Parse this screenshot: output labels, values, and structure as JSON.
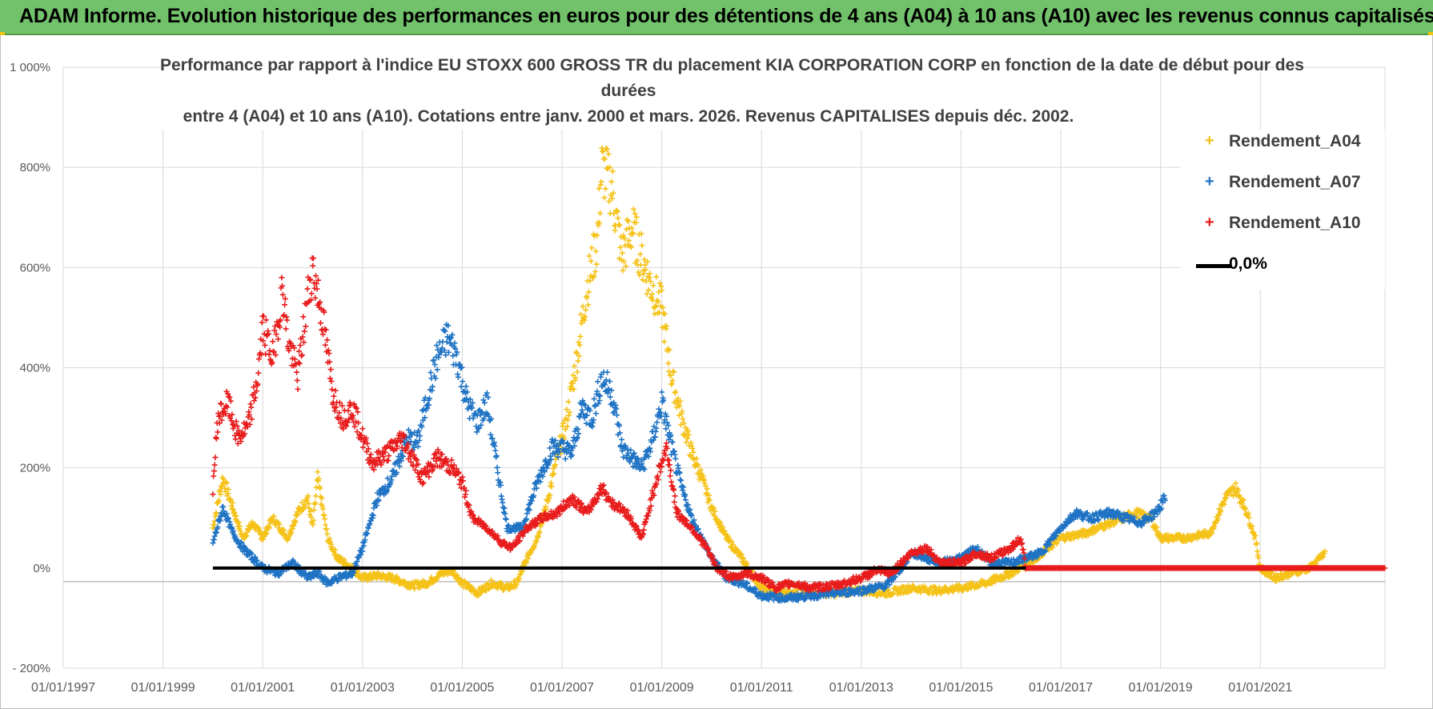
{
  "banner": {
    "title": "ADAM Informe. Evolution historique des performances en euros pour des détentions de 4 ans (A04) à 10 ans (A10) avec les revenus connus capitalisés"
  },
  "chart_data": {
    "type": "scatter",
    "title_lines": [
      "Performance par rapport à l'indice EU STOXX 600 GROSS TR  du placement KIA CORPORATION CORP en fonction de la date de début pour des",
      "durées",
      "entre 4 (A04) et 10 ans (A10).  Cotations entre janv. 2000 et mars. 2026.  Revenus CAPITALISES  depuis déc. 2002."
    ],
    "xlabel": "",
    "ylabel": "",
    "x_range": [
      1997.0,
      2023.5
    ],
    "ylim": [
      -200,
      1000
    ],
    "y_ticks": [
      1000,
      800,
      600,
      400,
      200,
      0,
      -200
    ],
    "y_tick_labels": [
      "1 000%",
      "800%",
      "600%",
      "400%",
      "200%",
      "0%",
      "- 200%"
    ],
    "x_ticks": [
      1997,
      1999,
      2001,
      2003,
      2005,
      2007,
      2009,
      2011,
      2013,
      2015,
      2017,
      2019,
      2021
    ],
    "x_tick_labels": [
      "01/01/1997",
      "01/01/1999",
      "01/01/2001",
      "01/01/2003",
      "01/01/2005",
      "01/01/2007",
      "01/01/2009",
      "01/01/2011",
      "01/01/2013",
      "01/01/2015",
      "01/01/2017",
      "01/01/2019",
      "01/01/2021"
    ],
    "gridlines": true,
    "legend_position": "top-right",
    "series": [
      {
        "name": "Rendement_A04",
        "color": "#f5c218",
        "marker": "plus",
        "points": [
          [
            2000.0,
            80
          ],
          [
            2000.2,
            180
          ],
          [
            2000.4,
            120
          ],
          [
            2000.6,
            60
          ],
          [
            2000.8,
            90
          ],
          [
            2001.0,
            60
          ],
          [
            2001.2,
            100
          ],
          [
            2001.5,
            60
          ],
          [
            2001.7,
            110
          ],
          [
            2001.9,
            140
          ],
          [
            2002.0,
            80
          ],
          [
            2002.1,
            180
          ],
          [
            2002.3,
            60
          ],
          [
            2002.5,
            20
          ],
          [
            2002.8,
            0
          ],
          [
            2003.0,
            -20
          ],
          [
            2003.3,
            -15
          ],
          [
            2003.6,
            -20
          ],
          [
            2004.0,
            -35
          ],
          [
            2004.3,
            -30
          ],
          [
            2004.6,
            -10
          ],
          [
            2004.8,
            -5
          ],
          [
            2005.0,
            -30
          ],
          [
            2005.3,
            -50
          ],
          [
            2005.6,
            -30
          ],
          [
            2005.9,
            -40
          ],
          [
            2006.1,
            -30
          ],
          [
            2006.3,
            20
          ],
          [
            2006.5,
            60
          ],
          [
            2006.7,
            130
          ],
          [
            2006.9,
            220
          ],
          [
            2007.1,
            300
          ],
          [
            2007.3,
            420
          ],
          [
            2007.5,
            560
          ],
          [
            2007.7,
            650
          ],
          [
            2007.8,
            800
          ],
          [
            2008.0,
            760
          ],
          [
            2008.2,
            620
          ],
          [
            2008.4,
            680
          ],
          [
            2008.6,
            620
          ],
          [
            2008.8,
            560
          ],
          [
            2009.0,
            520
          ],
          [
            2009.2,
            380
          ],
          [
            2009.4,
            300
          ],
          [
            2009.6,
            230
          ],
          [
            2009.8,
            180
          ],
          [
            2010.0,
            120
          ],
          [
            2010.3,
            60
          ],
          [
            2010.6,
            20
          ],
          [
            2011.0,
            -40
          ],
          [
            2011.5,
            -50
          ],
          [
            2012.0,
            -50
          ],
          [
            2012.5,
            -50
          ],
          [
            2013.0,
            -45
          ],
          [
            2013.5,
            -50
          ],
          [
            2014.0,
            -40
          ],
          [
            2014.5,
            -45
          ],
          [
            2015.0,
            -40
          ],
          [
            2015.5,
            -30
          ],
          [
            2016.0,
            -10
          ],
          [
            2016.5,
            20
          ],
          [
            2017.0,
            60
          ],
          [
            2017.5,
            70
          ],
          [
            2018.0,
            90
          ],
          [
            2018.5,
            110
          ],
          [
            2018.8,
            100
          ],
          [
            2019.0,
            60
          ],
          [
            2019.5,
            60
          ],
          [
            2020.0,
            70
          ],
          [
            2020.3,
            140
          ],
          [
            2020.5,
            160
          ],
          [
            2020.7,
            120
          ],
          [
            2020.9,
            60
          ],
          [
            2021.0,
            0
          ],
          [
            2021.3,
            -20
          ],
          [
            2021.6,
            -10
          ],
          [
            2022.0,
            0
          ],
          [
            2022.3,
            30
          ]
        ]
      },
      {
        "name": "Rendement_A07",
        "color": "#1f73c4",
        "marker": "plus",
        "points": [
          [
            2000.0,
            50
          ],
          [
            2000.2,
            120
          ],
          [
            2000.4,
            70
          ],
          [
            2000.6,
            40
          ],
          [
            2000.8,
            20
          ],
          [
            2001.0,
            0
          ],
          [
            2001.3,
            -10
          ],
          [
            2001.6,
            10
          ],
          [
            2001.9,
            -20
          ],
          [
            2002.1,
            -10
          ],
          [
            2002.3,
            -30
          ],
          [
            2002.5,
            -20
          ],
          [
            2002.8,
            -10
          ],
          [
            2003.0,
            40
          ],
          [
            2003.3,
            140
          ],
          [
            2003.6,
            180
          ],
          [
            2003.9,
            260
          ],
          [
            2004.1,
            250
          ],
          [
            2004.3,
            340
          ],
          [
            2004.5,
            420
          ],
          [
            2004.7,
            460
          ],
          [
            2004.9,
            420
          ],
          [
            2005.1,
            330
          ],
          [
            2005.3,
            290
          ],
          [
            2005.5,
            330
          ],
          [
            2005.7,
            200
          ],
          [
            2005.9,
            80
          ],
          [
            2006.2,
            80
          ],
          [
            2006.5,
            170
          ],
          [
            2006.8,
            240
          ],
          [
            2007.0,
            240
          ],
          [
            2007.2,
            230
          ],
          [
            2007.4,
            320
          ],
          [
            2007.6,
            300
          ],
          [
            2007.8,
            380
          ],
          [
            2008.0,
            350
          ],
          [
            2008.2,
            240
          ],
          [
            2008.4,
            220
          ],
          [
            2008.6,
            200
          ],
          [
            2008.8,
            250
          ],
          [
            2009.0,
            330
          ],
          [
            2009.2,
            240
          ],
          [
            2009.4,
            160
          ],
          [
            2009.6,
            100
          ],
          [
            2009.8,
            60
          ],
          [
            2010.0,
            20
          ],
          [
            2010.3,
            -20
          ],
          [
            2010.6,
            -30
          ],
          [
            2011.0,
            -55
          ],
          [
            2011.5,
            -60
          ],
          [
            2012.0,
            -55
          ],
          [
            2012.5,
            -50
          ],
          [
            2013.0,
            -45
          ],
          [
            2013.5,
            -35
          ],
          [
            2013.8,
            0
          ],
          [
            2014.0,
            30
          ],
          [
            2014.3,
            20
          ],
          [
            2014.6,
            10
          ],
          [
            2015.0,
            20
          ],
          [
            2015.3,
            40
          ],
          [
            2015.6,
            10
          ],
          [
            2016.0,
            10
          ],
          [
            2016.3,
            20
          ],
          [
            2016.6,
            30
          ],
          [
            2017.0,
            80
          ],
          [
            2017.3,
            110
          ],
          [
            2017.6,
            100
          ],
          [
            2018.0,
            110
          ],
          [
            2018.3,
            100
          ],
          [
            2018.6,
            90
          ],
          [
            2018.9,
            110
          ],
          [
            2019.1,
            140
          ]
        ]
      },
      {
        "name": "Rendement_A10",
        "color": "#e81c1c",
        "marker": "plus",
        "points": [
          [
            2000.0,
            160
          ],
          [
            2000.1,
            300
          ],
          [
            2000.3,
            330
          ],
          [
            2000.5,
            260
          ],
          [
            2000.7,
            280
          ],
          [
            2000.9,
            380
          ],
          [
            2001.0,
            480
          ],
          [
            2001.2,
            420
          ],
          [
            2001.4,
            560
          ],
          [
            2001.5,
            460
          ],
          [
            2001.7,
            380
          ],
          [
            2001.9,
            540
          ],
          [
            2002.0,
            600
          ],
          [
            2002.2,
            500
          ],
          [
            2002.4,
            350
          ],
          [
            2002.6,
            300
          ],
          [
            2002.8,
            320
          ],
          [
            2003.0,
            260
          ],
          [
            2003.2,
            210
          ],
          [
            2003.5,
            230
          ],
          [
            2003.8,
            260
          ],
          [
            2004.0,
            220
          ],
          [
            2004.2,
            180
          ],
          [
            2004.5,
            220
          ],
          [
            2004.8,
            200
          ],
          [
            2005.0,
            170
          ],
          [
            2005.2,
            100
          ],
          [
            2005.5,
            80
          ],
          [
            2005.8,
            50
          ],
          [
            2006.0,
            40
          ],
          [
            2006.3,
            80
          ],
          [
            2006.6,
            100
          ],
          [
            2006.9,
            110
          ],
          [
            2007.2,
            140
          ],
          [
            2007.5,
            110
          ],
          [
            2007.8,
            160
          ],
          [
            2008.0,
            130
          ],
          [
            2008.3,
            110
          ],
          [
            2008.6,
            60
          ],
          [
            2008.9,
            180
          ],
          [
            2009.1,
            240
          ],
          [
            2009.3,
            110
          ],
          [
            2009.6,
            80
          ],
          [
            2009.9,
            40
          ],
          [
            2010.1,
            0
          ],
          [
            2010.4,
            -20
          ],
          [
            2010.7,
            -10
          ],
          [
            2011.0,
            -20
          ],
          [
            2011.3,
            -40
          ],
          [
            2011.6,
            -30
          ],
          [
            2012.0,
            -40
          ],
          [
            2012.5,
            -35
          ],
          [
            2013.0,
            -20
          ],
          [
            2013.3,
            -5
          ],
          [
            2013.6,
            -10
          ],
          [
            2014.0,
            30
          ],
          [
            2014.3,
            40
          ],
          [
            2014.6,
            10
          ],
          [
            2015.0,
            10
          ],
          [
            2015.3,
            30
          ],
          [
            2015.6,
            20
          ],
          [
            2016.0,
            40
          ],
          [
            2016.2,
            60
          ],
          [
            2016.3,
            0
          ],
          [
            2017.0,
            0
          ],
          [
            2018.0,
            0
          ],
          [
            2019.0,
            0
          ],
          [
            2020.0,
            0
          ],
          [
            2021.0,
            0
          ],
          [
            2022.0,
            0
          ],
          [
            2023.0,
            0
          ],
          [
            2023.5,
            0
          ]
        ]
      },
      {
        "name": "0,0%",
        "color": "#000000",
        "type": "line",
        "points": [
          [
            2000.0,
            0
          ],
          [
            2016.3,
            0
          ]
        ]
      }
    ]
  }
}
